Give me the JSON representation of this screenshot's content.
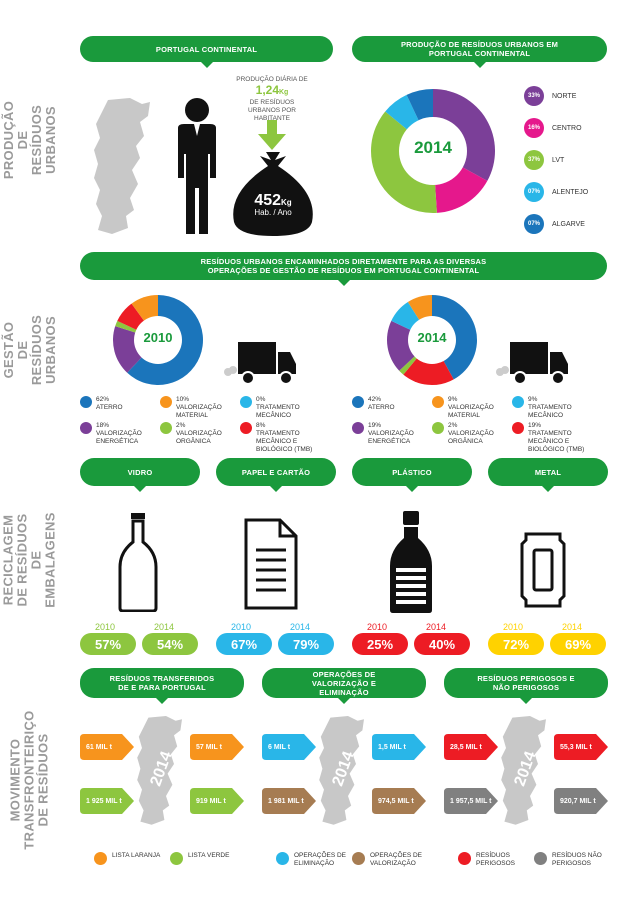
{
  "sections": {
    "producao": "PRODUÇÃO DE RESÍDUOS URBANOS",
    "gestao": "GESTÃO DE RESÍDUOS URBANOS",
    "reciclagem": "RECICLAGEM DE RESÍDUOS DE EMBALAGENS",
    "movimento": "MOVIMENTO TRANSFRONTEIRIÇO DE RESÍDUOS"
  },
  "producao": {
    "banner_left": "PORTUGAL CONTINENTAL",
    "banner_right": "PRODUÇÃO DE RESÍDUOS URBANOS EM PORTUGAL CONTINENTAL",
    "daily_label_top": "PRODUÇÃO DIÁRIA DE",
    "daily_value": "1,24",
    "daily_unit": "Kg",
    "daily_label_bottom": "DE RESÍDUOS URBANOS POR HABITANTE",
    "bag_value": "452",
    "bag_unit": "Kg",
    "bag_label": "Hab. / Ano",
    "donut_year": "2014",
    "regions": [
      {
        "pct": "33%",
        "label": "NORTE",
        "color": "#7b3f98"
      },
      {
        "pct": "16%",
        "label": "CENTRO",
        "color": "#e5188c"
      },
      {
        "pct": "37%",
        "label": "LVT",
        "color": "#8dc63f"
      },
      {
        "pct": "07%",
        "label": "ALENTEJO",
        "color": "#29b6e8"
      },
      {
        "pct": "07%",
        "label": "ALGARVE",
        "color": "#1b75bb"
      }
    ]
  },
  "gestao": {
    "banner": "RESÍDUOS URBANOS ENCAMINHADOS DIRETAMENTE PARA AS DIVERSAS OPERAÇÕES DE GESTÃO DE RESÍDUOS EM PORTUGAL CONTINENTAL",
    "y2010": {
      "year": "2010",
      "items": [
        {
          "pct": "62%",
          "label": "ATERRO",
          "color": "#1b75bb"
        },
        {
          "pct": "10%",
          "label": "VALORIZAÇÃO MATERIAL",
          "color": "#f7941d"
        },
        {
          "pct": "0%",
          "label": "TRATAMENTO MECÂNICO",
          "color": "#29b6e8"
        },
        {
          "pct": "18%",
          "label": "VALORIZAÇÃO ENERGÉTICA",
          "color": "#7b3f98"
        },
        {
          "pct": "2%",
          "label": "VALORIZAÇÃO ORGÂNICA",
          "color": "#8dc63f"
        },
        {
          "pct": "8%",
          "label": "TRATAMENTO MECÂNICO E BIOLÓGICO (TMB)",
          "color": "#ed1c24"
        }
      ]
    },
    "y2014": {
      "year": "2014",
      "items": [
        {
          "pct": "42%",
          "label": "ATERRO",
          "color": "#1b75bb"
        },
        {
          "pct": "9%",
          "label": "VALORIZAÇÃO MATERIAL",
          "color": "#f7941d"
        },
        {
          "pct": "9%",
          "label": "TRATAMENTO MECÂNICO",
          "color": "#29b6e8"
        },
        {
          "pct": "19%",
          "label": "VALORIZAÇÃO ENERGÉTICA",
          "color": "#7b3f98"
        },
        {
          "pct": "2%",
          "label": "VALORIZAÇÃO ORGÂNICA",
          "color": "#8dc63f"
        },
        {
          "pct": "19%",
          "label": "TRATAMENTO MECÂNICO E BIOLÓGICO (TMB)",
          "color": "#ed1c24"
        }
      ]
    }
  },
  "reciclagem": {
    "materials": [
      {
        "name": "VIDRO",
        "y1": "2010",
        "y2": "2014",
        "v1": "57%",
        "v2": "54%",
        "color": "#8dc63f"
      },
      {
        "name": "PAPEL E CARTÃO",
        "y1": "2010",
        "y2": "2014",
        "v1": "67%",
        "v2": "79%",
        "color": "#29b6e8"
      },
      {
        "name": "PLÁSTICO",
        "y1": "2010",
        "y2": "2014",
        "v1": "25%",
        "v2": "40%",
        "color": "#ed1c24"
      },
      {
        "name": "METAL",
        "y1": "2010",
        "y2": "2014",
        "v1": "72%",
        "v2": "69%",
        "color": "#ffd200"
      }
    ]
  },
  "movimento": {
    "map_year": "2014",
    "panels": [
      {
        "title": "RESÍDUOS TRANSFERIDOS DE E PARA PORTUGAL",
        "a1": "61 MIL t",
        "a2": "57 MIL t",
        "a3": "1 925 MIL t",
        "a4": "919 MIL t",
        "c1": "#f7941d",
        "c2": "#8dc63f",
        "legend1": "LISTA LARANJA",
        "legend2": "LISTA VERDE"
      },
      {
        "title": "OPERAÇÕES DE VALORIZAÇÃO E ELIMINAÇÃO",
        "a1": "6 MIL t",
        "a2": "1,5 MIL t",
        "a3": "1 981 MIL t",
        "a4": "974,5 MIL t",
        "c1": "#29b6e8",
        "c2": "#a67c52",
        "legend1": "OPERAÇÕES DE ELIMINAÇÃO",
        "legend2": "OPERAÇÕES DE VALORIZAÇÃO"
      },
      {
        "title": "RESÍDUOS PERIGOSOS E NÃO PERIGOSOS",
        "a1": "28,5 MIL t",
        "a2": "55,3 MIL t",
        "a3": "1 957,5 MIL t",
        "a4": "920,7 MIL t",
        "c1": "#ed1c24",
        "c2": "#808080",
        "legend1": "RESÍDUOS PERIGOSOS",
        "legend2": "RESÍDUOS NÃO PERIGOSOS"
      }
    ]
  }
}
